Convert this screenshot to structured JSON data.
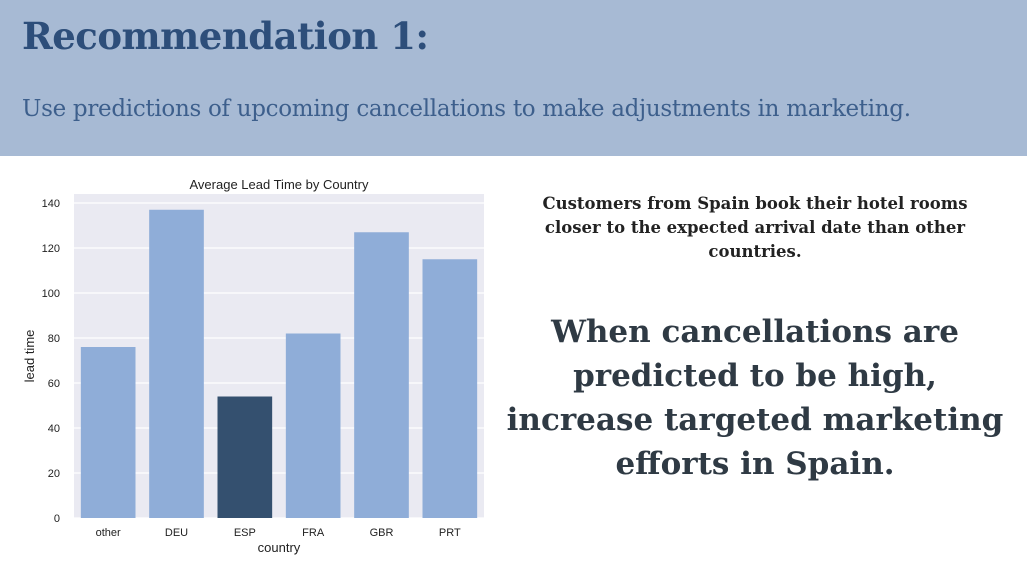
{
  "slide": {
    "title": "Recommendation 1:",
    "subtitle": "Use predictions of upcoming cancellations to make adjustments in marketing.",
    "note": "Customers from Spain book their hotel rooms closer to the expected arrival date than other countries.",
    "callout": "When cancellations are predicted to be high, increase targeted marketing efforts in Spain."
  },
  "colors": {
    "header_bg": "#a7bad4",
    "bar": "#8fadd8",
    "bar_highlight": "#34506f",
    "plot_bg": "#eaeaf2"
  },
  "chart_data": {
    "type": "bar",
    "title": "Average Lead Time by Country",
    "xlabel": "country",
    "ylabel": "lead time",
    "categories": [
      "other",
      "DEU",
      "ESP",
      "FRA",
      "GBR",
      "PRT"
    ],
    "values": [
      76,
      137,
      54,
      82,
      127,
      115
    ],
    "highlight": "ESP",
    "ylim": [
      0,
      140
    ],
    "yticks": [
      0,
      20,
      40,
      60,
      80,
      100,
      120,
      140
    ],
    "grid": true
  }
}
